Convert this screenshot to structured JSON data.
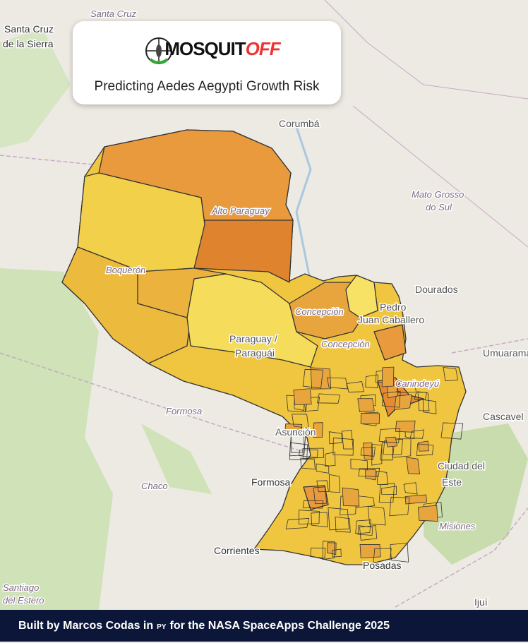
{
  "header": {
    "logo": {
      "main": "MOSQUIT",
      "accent": "OFF"
    },
    "subtitle": "Predicting Aedes Aegypti Growth Risk"
  },
  "map": {
    "labels": [
      "Santa Cruz",
      "Santa Cruz",
      "de la Sierra",
      "Corumbá",
      "Alto Paraguay",
      "Mato Grosso",
      "do Sul",
      "Boquerón",
      "Concepción",
      "Pedro",
      "Juan Caballero",
      "Dourados",
      "Paraguay /",
      "Paraguái",
      "Concepción",
      "Canindeyú",
      "Umuarama",
      "Formosa",
      "Asunción",
      "Cascavel",
      "Ciudad del",
      "Este",
      "Chaco",
      "Formosa",
      "Misiones",
      "Corrientes",
      "Posadas",
      "Santiago",
      "del Estero",
      "Ijuí"
    ]
  },
  "footer": {
    "before": "Built by Marcos Codas in",
    "flag": "PY",
    "after": "for the NASA SpaceApps Challenge 2025"
  }
}
